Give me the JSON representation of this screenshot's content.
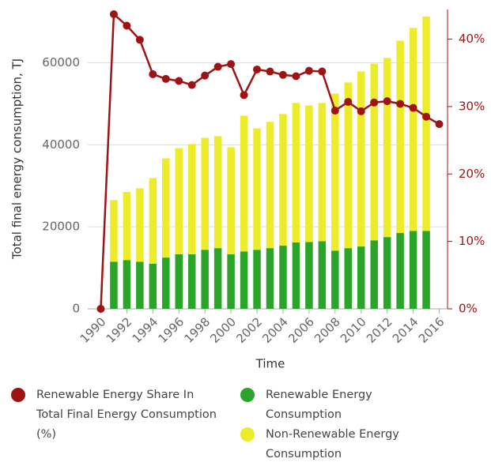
{
  "chart_data": {
    "type": "bar",
    "stacked": true,
    "x_label": "Time",
    "y_label": "Total final energy consumption, TJ",
    "x": [
      1990,
      1991,
      1992,
      1993,
      1994,
      1995,
      1996,
      1997,
      1998,
      1999,
      2000,
      2001,
      2002,
      2003,
      2004,
      2005,
      2006,
      2007,
      2008,
      2009,
      2010,
      2011,
      2012,
      2013,
      2014,
      2015,
      2016
    ],
    "xlim": [
      1989,
      2017
    ],
    "xticks": [
      1990,
      1992,
      1994,
      1996,
      1998,
      2000,
      2002,
      2004,
      2006,
      2008,
      2010,
      2012,
      2014,
      2016
    ],
    "ylim": [
      0,
      73000
    ],
    "yticks": [
      0,
      20000,
      40000,
      60000
    ],
    "y2lim": [
      0,
      44.4
    ],
    "y2ticks": [
      {
        "value": 0,
        "label": "0%"
      },
      {
        "value": 10,
        "label": "10%"
      },
      {
        "value": 20,
        "label": "20%"
      },
      {
        "value": 30,
        "label": "30%"
      },
      {
        "value": 40,
        "label": "40%"
      }
    ],
    "grid": true,
    "series": [
      {
        "name": "Renewable Energy Share In Total Final Energy Consumption (%)",
        "type": "line",
        "axis": "y2",
        "color": "#9e1414",
        "values": [
          0,
          43.7,
          42.0,
          39.9,
          34.8,
          34.1,
          33.8,
          33.2,
          34.6,
          35.9,
          36.3,
          31.7,
          35.5,
          35.2,
          34.7,
          34.5,
          35.3,
          35.2,
          29.4,
          30.7,
          29.3,
          30.6,
          30.8,
          30.4,
          29.8,
          28.5,
          27.4
        ]
      },
      {
        "name": "Renewable Energy Consumption",
        "type": "bar",
        "axis": "y",
        "color": "#2aa52a",
        "values": [
          null,
          11500,
          11900,
          11500,
          11000,
          12500,
          13300,
          13300,
          14400,
          14800,
          13300,
          14000,
          14400,
          14800,
          15400,
          16200,
          16300,
          16500,
          14200,
          14800,
          15200,
          16700,
          17500,
          18500,
          19000,
          19000,
          null
        ]
      },
      {
        "name": "Non-Renewable Energy Consumption",
        "type": "bar",
        "axis": "y",
        "color": "#ecec2a",
        "values": [
          null,
          15000,
          16600,
          17900,
          20900,
          24200,
          25900,
          26900,
          27300,
          27300,
          26100,
          33100,
          29600,
          30800,
          32100,
          34000,
          33300,
          33700,
          38300,
          40400,
          42700,
          43100,
          43700,
          46900,
          49500,
          52300,
          null
        ]
      }
    ]
  }
}
